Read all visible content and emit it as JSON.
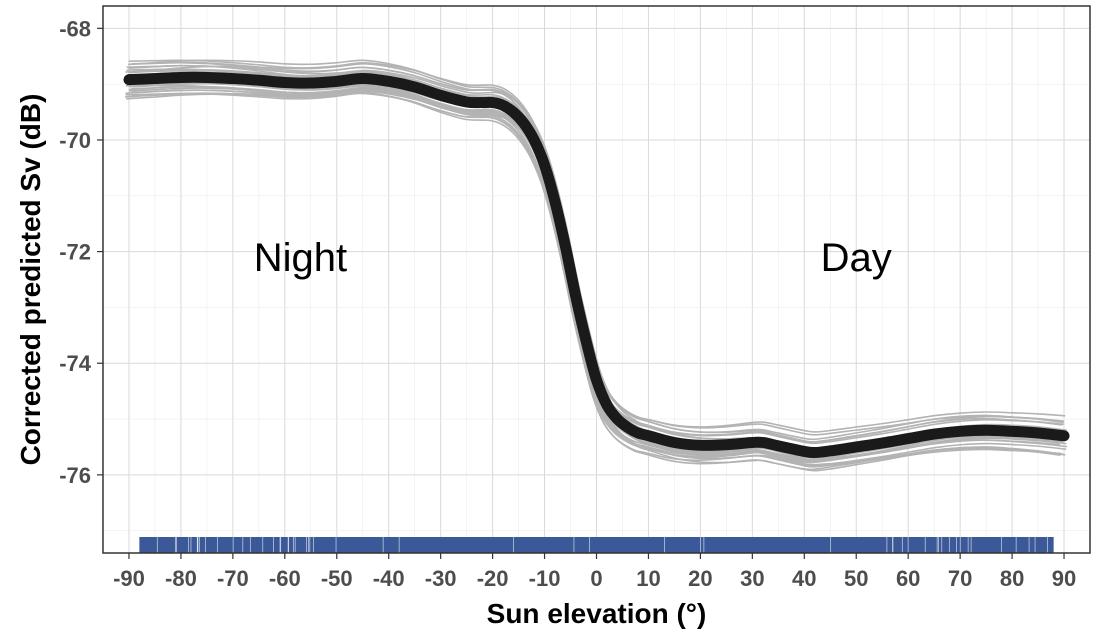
{
  "chart_data": {
    "type": "line",
    "xlabel": "Sun elevation (°)",
    "ylabel": "Corrected predicted Sv (dB)",
    "xlim": [
      -95,
      95
    ],
    "ylim": [
      -77.4,
      -67.6
    ],
    "xticks": [
      -90,
      -80,
      -70,
      -60,
      -50,
      -40,
      -30,
      -20,
      -10,
      0,
      10,
      20,
      30,
      40,
      50,
      60,
      70,
      80,
      90
    ],
    "xtick_labels": [
      "-90",
      "-80",
      "-70",
      "-60",
      "-50",
      "-40",
      "-30",
      "-20",
      "-10",
      "0",
      "10",
      "20",
      "30",
      "40",
      "50",
      "60",
      "70",
      "80",
      "90"
    ],
    "yticks": [
      -68,
      -70,
      -72,
      -74,
      -76
    ],
    "ytick_labels": [
      "-68",
      "-70",
      "-72",
      "-74",
      "-76"
    ],
    "grid": true,
    "annotations": [
      {
        "text": "Night",
        "x": -57,
        "y": -72.1
      },
      {
        "text": "Day",
        "x": 50,
        "y": -72.1
      }
    ],
    "main_curve": {
      "color": "#1a1a1a",
      "x": [
        -90,
        -85,
        -80,
        -75,
        -70,
        -65,
        -60,
        -55,
        -50,
        -45,
        -40,
        -35,
        -30,
        -25,
        -22,
        -20,
        -18,
        -16,
        -14,
        -12,
        -10,
        -8,
        -6,
        -4,
        -2,
        0,
        2,
        4,
        6,
        8,
        10,
        15,
        20,
        25,
        30,
        32,
        35,
        40,
        42,
        45,
        50,
        55,
        60,
        65,
        70,
        75,
        80,
        85,
        90
      ],
      "y": [
        -68.92,
        -68.9,
        -68.88,
        -68.88,
        -68.9,
        -68.93,
        -68.97,
        -68.98,
        -68.95,
        -68.9,
        -68.95,
        -69.05,
        -69.2,
        -69.32,
        -69.33,
        -69.33,
        -69.38,
        -69.5,
        -69.7,
        -70.0,
        -70.45,
        -71.1,
        -71.9,
        -72.8,
        -73.6,
        -74.3,
        -74.75,
        -75.0,
        -75.15,
        -75.25,
        -75.3,
        -75.42,
        -75.47,
        -75.46,
        -75.42,
        -75.42,
        -75.48,
        -75.58,
        -75.6,
        -75.57,
        -75.5,
        -75.43,
        -75.35,
        -75.27,
        -75.22,
        -75.2,
        -75.22,
        -75.25,
        -75.3
      ]
    },
    "bootstrap_band": {
      "color": "#b3b3b3",
      "count": 30,
      "spread_dB": 0.3
    },
    "rug": {
      "color": "#3b5998",
      "x_from": -88,
      "x_to": 88
    }
  }
}
